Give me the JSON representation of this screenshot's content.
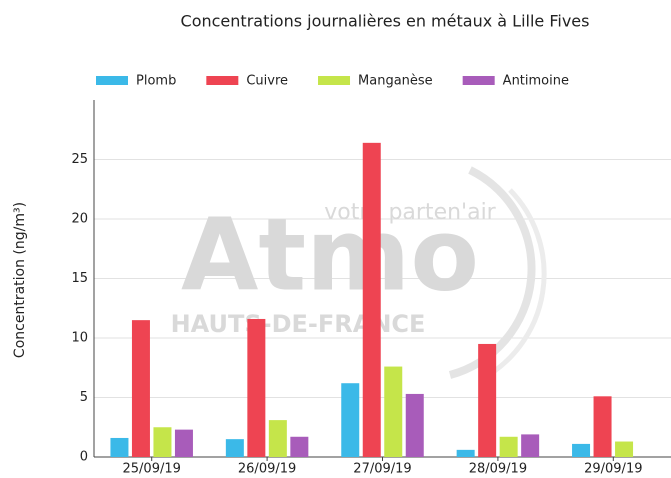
{
  "chart_data": {
    "type": "bar",
    "title": "Concentrations journalières en métaux à Lille Fives",
    "y_label": "Concentration (ng/m³)",
    "watermark": {
      "tagline": "votre parten'air",
      "logo": "Atmo",
      "region": "HAUTS-DE-FRANCE"
    },
    "categories": [
      "25/09/19",
      "26/09/19",
      "27/09/19",
      "28/09/19",
      "29/09/19"
    ],
    "series": [
      {
        "name": "Plomb",
        "color": "#3bb9e8",
        "values": [
          1.6,
          1.5,
          6.2,
          0.6,
          1.1
        ]
      },
      {
        "name": "Cuivre",
        "color": "#ee4452",
        "values": [
          11.5,
          11.6,
          26.4,
          9.5,
          5.1
        ]
      },
      {
        "name": "Manganèse",
        "color": "#c5e54a",
        "values": [
          2.5,
          3.1,
          7.6,
          1.7,
          1.3
        ]
      },
      {
        "name": "Antimoine",
        "color": "#a85cba",
        "values": [
          2.3,
          1.7,
          5.3,
          1.9,
          null
        ]
      }
    ],
    "ylim": [
      0,
      30
    ],
    "yticks": [
      0,
      5,
      10,
      15,
      20,
      25
    ],
    "grid": true,
    "legend": "top"
  }
}
